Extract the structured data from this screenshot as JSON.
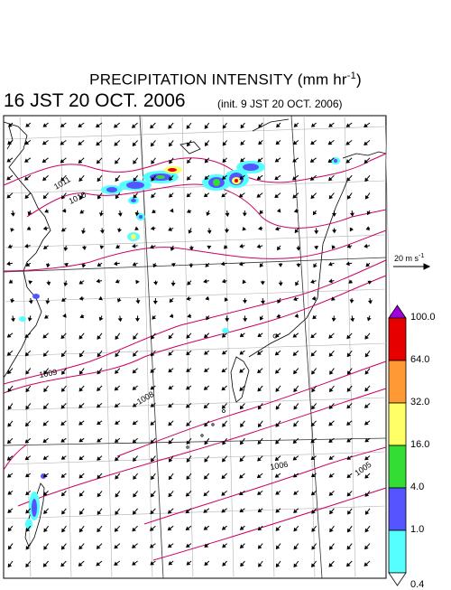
{
  "header": {
    "title": "PRECIPITATION INTENSITY (mm hr",
    "title_sup": "-1",
    "title_close": ")",
    "valid_time": "16 JST 20 OCT. 2006",
    "init_time": "(init. 9 JST 20 OCT. 2006)"
  },
  "wind_scale": {
    "label": "20 m s",
    "label_sup": "-1"
  },
  "legend": {
    "levels": [
      "100.0",
      "64.0",
      "32.0",
      "16.0",
      "4.0",
      "1.0",
      "0.4"
    ],
    "colors": [
      "#a000e0",
      "#e60000",
      "#ff9933",
      "#ffff66",
      "#33dd33",
      "#5555ff",
      "#55ffff"
    ]
  },
  "isobars": {
    "labels": [
      "1011",
      "1010",
      "1009",
      "1008",
      "1008",
      "1006",
      "1005"
    ],
    "color": "#cc0066"
  },
  "map": {
    "frame_color": "#000000",
    "grid_color": "#aaaaaa"
  }
}
